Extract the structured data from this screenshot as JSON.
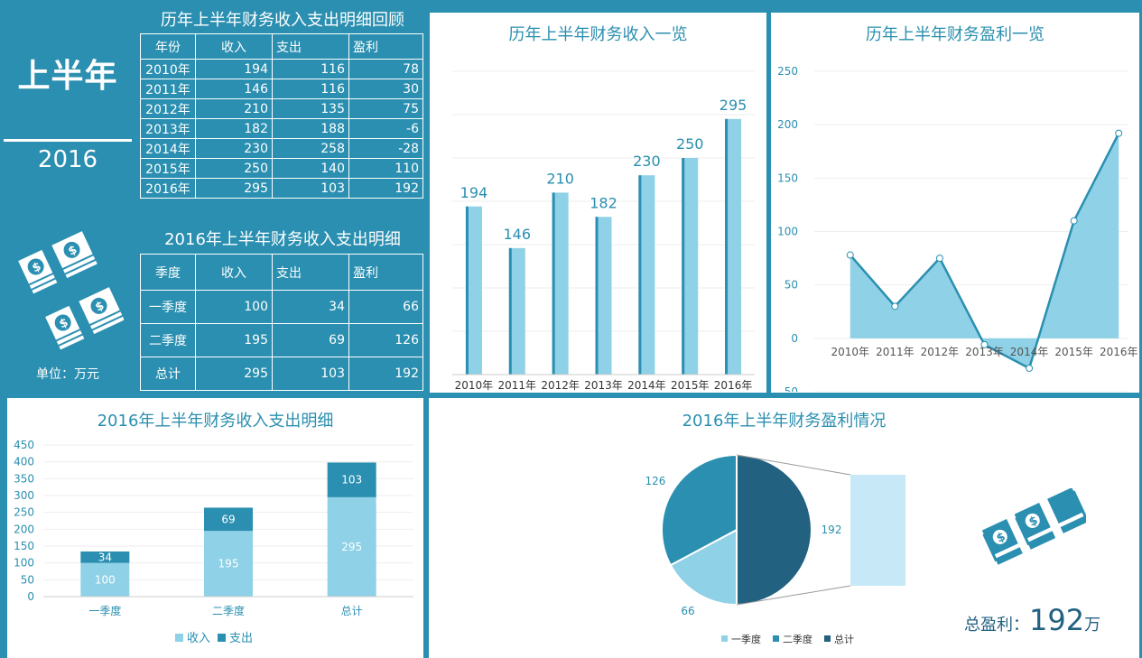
{
  "left_panel": {
    "title": "上半年",
    "year": "2016",
    "unit": "单位：万元"
  },
  "history_table": {
    "title": "历年上半年财务收入支出明细回顾",
    "headers": [
      "年份",
      "收入",
      "支出",
      "盈利"
    ],
    "rows": [
      [
        "2010年",
        "194",
        "116",
        "78"
      ],
      [
        "2011年",
        "146",
        "116",
        "30"
      ],
      [
        "2012年",
        "210",
        "135",
        "75"
      ],
      [
        "2013年",
        "182",
        "188",
        "-6"
      ],
      [
        "2014年",
        "230",
        "258",
        "-28"
      ],
      [
        "2015年",
        "250",
        "140",
        "110"
      ],
      [
        "2016年",
        "295",
        "103",
        "192"
      ]
    ]
  },
  "detail_table": {
    "title": "2016年上半年财务收入支出明细",
    "headers": [
      "季度",
      "收入",
      "支出",
      "盈利"
    ],
    "rows": [
      [
        "一季度",
        "100",
        "34",
        "66"
      ],
      [
        "二季度",
        "195",
        "69",
        "126"
      ],
      [
        "总计",
        "295",
        "103",
        "192"
      ]
    ]
  },
  "total_profit": {
    "label": "总盈利：",
    "value": "192",
    "unit": "万"
  },
  "colors": {
    "background": "#2a8fb0",
    "light_bar": "#8fd1e6",
    "dark_bar": "#2a8fb0",
    "pie_dark": "#236181",
    "pale": "#c6e8f7"
  },
  "chart_data": [
    {
      "type": "bar",
      "title": "历年上半年财务收入一览",
      "categories": [
        "2010年",
        "2011年",
        "2012年",
        "2013年",
        "2014年",
        "2015年",
        "2016年"
      ],
      "values": [
        194,
        146,
        210,
        182,
        230,
        250,
        295
      ],
      "ylim": [
        0,
        350
      ],
      "grid": true
    },
    {
      "type": "area",
      "title": "历年上半年财务盈利一览",
      "categories": [
        "2010年",
        "2011年",
        "2012年",
        "2013年",
        "2014年",
        "2015年",
        "2016年"
      ],
      "values": [
        78,
        30,
        75,
        -6,
        -28,
        110,
        192
      ],
      "ylim": [
        -50,
        250
      ],
      "yticks": [
        "250",
        "200",
        "150",
        "100",
        "50",
        "0",
        "-50"
      ],
      "grid": true
    },
    {
      "type": "bar",
      "title": "2016年上半年财务收入支出明细",
      "stacked": true,
      "categories": [
        "一季度",
        "二季度",
        "总计"
      ],
      "series": [
        {
          "name": "收入",
          "values": [
            100,
            195,
            295
          ]
        },
        {
          "name": "支出",
          "values": [
            34,
            69,
            103
          ]
        }
      ],
      "ylim": [
        0,
        450
      ],
      "yticks": [
        "450",
        "400",
        "350",
        "300",
        "250",
        "200",
        "150",
        "100",
        "50",
        "0"
      ],
      "legend": "bottom"
    },
    {
      "type": "pie",
      "title": "2016年上半年财务盈利情况",
      "labels": [
        "一季度",
        "二季度",
        "总计"
      ],
      "values": [
        66,
        126,
        192
      ],
      "legend": "bottom"
    }
  ]
}
